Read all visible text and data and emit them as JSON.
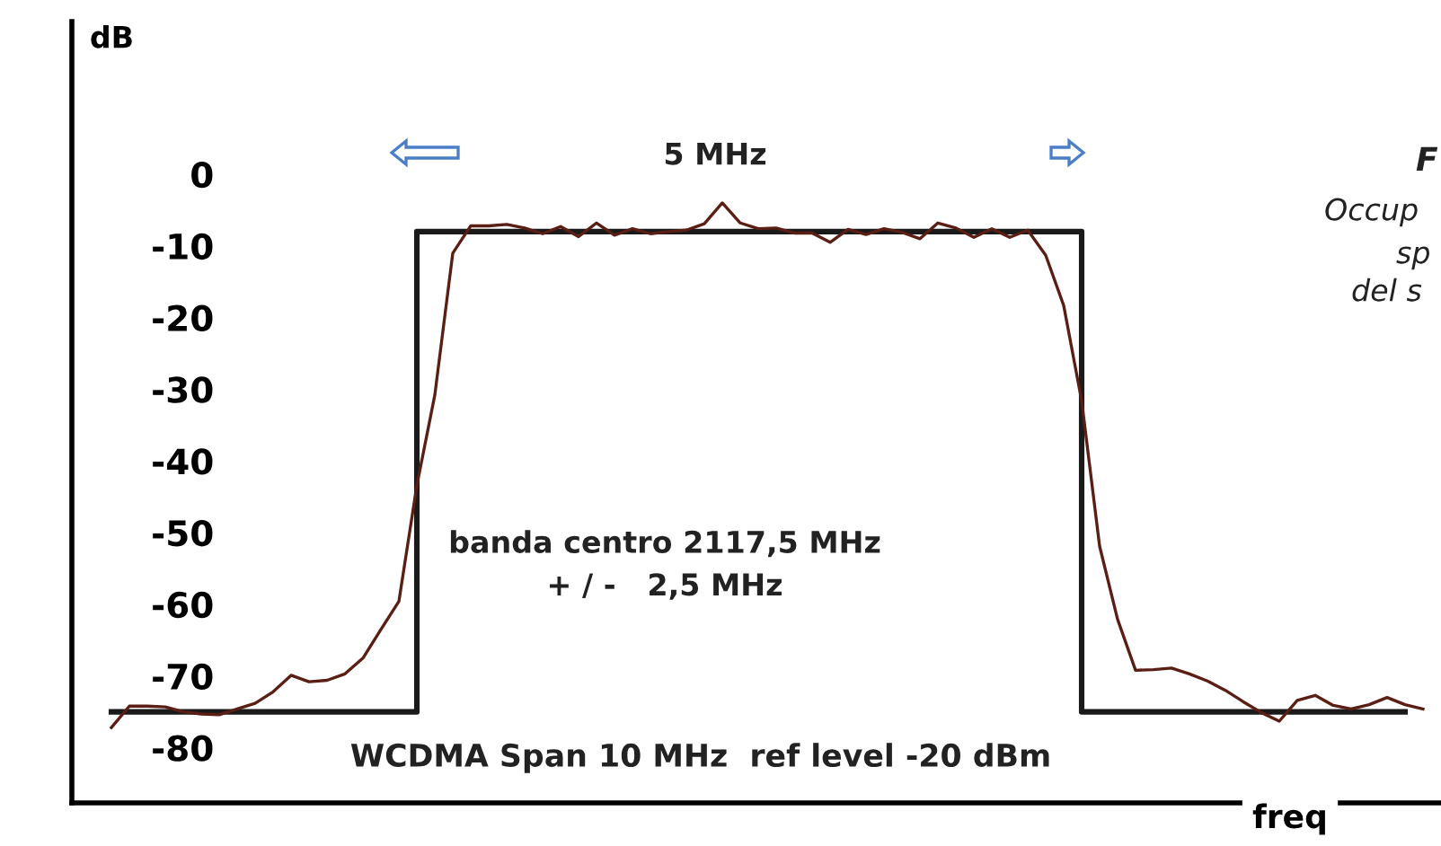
{
  "chart_data": {
    "type": "line",
    "ylabel": "dB",
    "xlabel": "freq",
    "categories": [
      null,
      null,
      null,
      null,
      null,
      null,
      null,
      null,
      null,
      null,
      null,
      null,
      null,
      null,
      null,
      null,
      null,
      null,
      null,
      null,
      null,
      null,
      null,
      null,
      null,
      null,
      null,
      null,
      null,
      null,
      null,
      null,
      null,
      null,
      null,
      null,
      null,
      null,
      null,
      null,
      null,
      null,
      null,
      null,
      null,
      null,
      null,
      null,
      null,
      null,
      null,
      null,
      null,
      null,
      null,
      null,
      null,
      null,
      null,
      null,
      null,
      null,
      null,
      null,
      null,
      null,
      null,
      null,
      null,
      null,
      null,
      null,
      null,
      null
    ],
    "ylim": [
      -87.7,
      21.3
    ],
    "yticks": [
      0,
      -10,
      -20,
      -30,
      -40,
      -50,
      -60,
      -70,
      -80
    ],
    "grid": false,
    "legend": false,
    "marker": "none",
    "line_style": "solid",
    "series": [
      {
        "type": "step",
        "color": "#1a1a1a",
        "values": [
          -75,
          -75,
          -75,
          -75,
          -75,
          -75,
          -75,
          -75,
          -75,
          -75,
          -75,
          -75,
          -75,
          -75,
          -75,
          -75,
          -75,
          -8,
          -8,
          -8,
          -8,
          -8,
          -8,
          -8,
          -8,
          -8,
          -8,
          -8,
          -8,
          -8,
          -8,
          -8,
          -8,
          -8,
          -8,
          -8,
          -8,
          -8,
          -8,
          -8,
          -8,
          -8,
          -8,
          -8,
          -8,
          -8,
          -8,
          -8,
          -8,
          -8,
          -8,
          -8,
          -8,
          -8,
          -75,
          -75,
          -75,
          -75,
          -75,
          -75,
          -75,
          -75,
          -75,
          -75,
          -75,
          -75,
          -75,
          -75,
          -75,
          -75,
          -75,
          -75,
          -75,
          null
        ]
      },
      {
        "color": "#5a1e14",
        "values": [
          -77.2,
          -74.2,
          -74.2,
          -74.3,
          -75.0,
          -75.3,
          -75.4,
          -74.6,
          -73.8,
          -72.2,
          -69.9,
          -70.8,
          -70.6,
          -69.7,
          -67.5,
          -63.5,
          -59.6,
          -43.4,
          -30.8,
          -11.0,
          -7.2,
          -7.2,
          -7.0,
          -7.5,
          -8.3,
          -7.3,
          -8.7,
          -6.8,
          -8.5,
          -7.6,
          -8.3,
          -8.0,
          -7.8,
          -6.9,
          -4.0,
          -6.8,
          -7.6,
          -7.5,
          -8.2,
          -8.2,
          -9.5,
          -7.7,
          -8.4,
          -7.6,
          -8.1,
          -9.0,
          -6.8,
          -7.5,
          -8.8,
          -7.6,
          -8.8,
          -7.8,
          -11.3,
          -18.3,
          -31.6,
          -51.9,
          -62.1,
          -69.2,
          -69.1,
          -68.9,
          -69.7,
          -70.7,
          -72.0,
          -73.6,
          -75.1,
          -76.3,
          -73.4,
          -72.7,
          -74.1,
          -74.6,
          -74.0,
          -73.0,
          -74.0,
          -74.6
        ]
      }
    ],
    "annotations": [
      "5 MHz",
      "banda centro 2117,5 MHz\n+ / -   2,5 MHz",
      "WCDMA Span 10 MHz  ref level -20 dBm",
      "F",
      "Occup",
      "sp",
      "del s"
    ]
  }
}
